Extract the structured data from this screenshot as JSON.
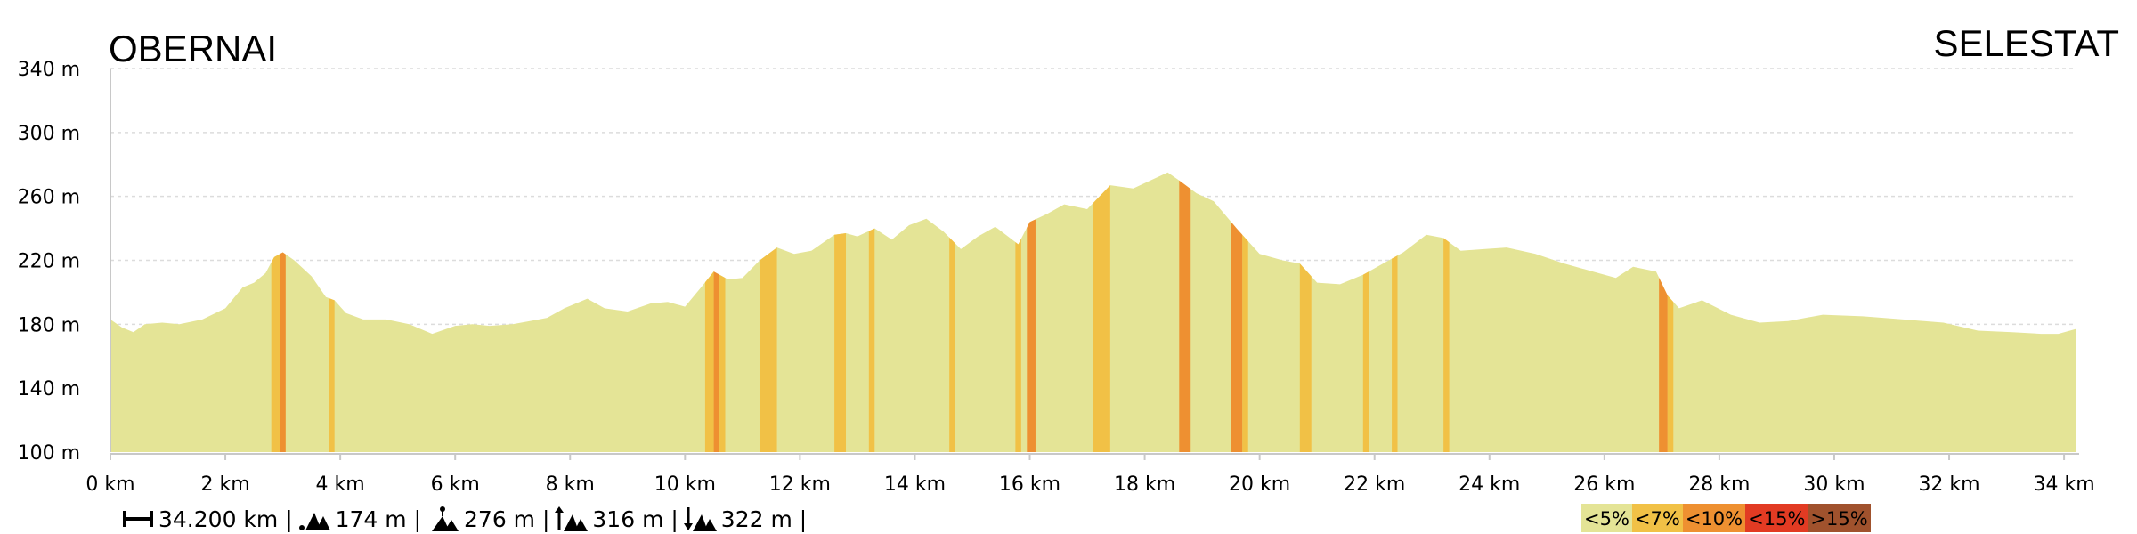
{
  "chart_data": {
    "type": "area",
    "title_left": "OBERNAI",
    "title_right": "SELESTAT",
    "xlabel": "",
    "ylabel": "",
    "x_unit": "km",
    "y_unit": "m",
    "xlim": [
      0,
      34.2
    ],
    "ylim": [
      100,
      340
    ],
    "x_ticks": [
      "0 km",
      "2 km",
      "4 km",
      "6 km",
      "8 km",
      "10 km",
      "12 km",
      "14 km",
      "16 km",
      "18 km",
      "20 km",
      "22 km",
      "24 km",
      "26 km",
      "28 km",
      "30 km",
      "32 km",
      "34 km"
    ],
    "y_ticks": [
      "100 m",
      "140 m",
      "180 m",
      "220 m",
      "260 m",
      "300 m",
      "340 m"
    ],
    "grid": "horizontal dotted",
    "profile": {
      "distance_km": [
        0,
        0.2,
        0.4,
        0.6,
        0.9,
        1.2,
        1.6,
        2.0,
        2.3,
        2.5,
        2.7,
        2.85,
        3.0,
        3.2,
        3.5,
        3.75,
        3.9,
        4.1,
        4.4,
        4.8,
        5.2,
        5.6,
        6.0,
        6.3,
        6.6,
        7.0,
        7.3,
        7.6,
        7.9,
        8.3,
        8.6,
        9.0,
        9.4,
        9.7,
        10.0,
        10.3,
        10.5,
        10.75,
        11.0,
        11.3,
        11.6,
        11.9,
        12.2,
        12.6,
        12.8,
        13.0,
        13.3,
        13.6,
        13.9,
        14.2,
        14.5,
        14.8,
        15.1,
        15.4,
        15.8,
        16.0,
        16.3,
        16.6,
        17.0,
        17.4,
        17.8,
        18.1,
        18.4,
        18.6,
        18.9,
        19.2,
        19.6,
        20.0,
        20.4,
        20.7,
        21.0,
        21.4,
        21.8,
        22.2,
        22.5,
        22.9,
        23.2,
        23.5,
        23.9,
        24.3,
        24.8,
        25.3,
        25.8,
        26.2,
        26.5,
        26.9,
        27.1,
        27.3,
        27.7,
        28.2,
        28.7,
        29.2,
        29.8,
        30.5,
        31.2,
        31.9,
        32.5,
        33.1,
        33.6,
        33.9,
        34.2
      ],
      "elevation_m": [
        183,
        178,
        175,
        180,
        181,
        180,
        183,
        190,
        203,
        206,
        212,
        222,
        225,
        220,
        210,
        197,
        195,
        187,
        183,
        183,
        180,
        174,
        179,
        180,
        179,
        180,
        182,
        184,
        190,
        196,
        190,
        188,
        193,
        194,
        191,
        204,
        213,
        208,
        209,
        220,
        228,
        224,
        226,
        236,
        237,
        235,
        240,
        233,
        242,
        246,
        238,
        227,
        235,
        241,
        230,
        244,
        249,
        255,
        252,
        267,
        265,
        270,
        275,
        270,
        262,
        257,
        240,
        224,
        220,
        218,
        206,
        205,
        211,
        219,
        225,
        236,
        234,
        226,
        227,
        228,
        224,
        218,
        213,
        209,
        216,
        213,
        198,
        190,
        195,
        186,
        181,
        182,
        186,
        185,
        183,
        181,
        176,
        175,
        174,
        174,
        177
      ]
    },
    "gradient_segments": [
      {
        "from_km": 2.8,
        "to_km": 2.95,
        "class": "<7%"
      },
      {
        "from_km": 2.95,
        "to_km": 3.05,
        "class": "<10%"
      },
      {
        "from_km": 3.8,
        "to_km": 3.9,
        "class": "<7%"
      },
      {
        "from_km": 10.35,
        "to_km": 10.5,
        "class": "<7%"
      },
      {
        "from_km": 10.5,
        "to_km": 10.6,
        "class": "<10%"
      },
      {
        "from_km": 10.6,
        "to_km": 10.7,
        "class": "<7%"
      },
      {
        "from_km": 11.3,
        "to_km": 11.6,
        "class": "<7%"
      },
      {
        "from_km": 12.6,
        "to_km": 12.8,
        "class": "<7%"
      },
      {
        "from_km": 13.2,
        "to_km": 13.3,
        "class": "<7%"
      },
      {
        "from_km": 14.6,
        "to_km": 14.7,
        "class": "<7%"
      },
      {
        "from_km": 15.75,
        "to_km": 15.85,
        "class": "<7%"
      },
      {
        "from_km": 15.95,
        "to_km": 16.1,
        "class": "<10%"
      },
      {
        "from_km": 17.1,
        "to_km": 17.4,
        "class": "<7%"
      },
      {
        "from_km": 18.6,
        "to_km": 18.8,
        "class": "<10%"
      },
      {
        "from_km": 19.5,
        "to_km": 19.7,
        "class": "<10%"
      },
      {
        "from_km": 19.7,
        "to_km": 19.8,
        "class": "<7%"
      },
      {
        "from_km": 20.7,
        "to_km": 20.9,
        "class": "<7%"
      },
      {
        "from_km": 21.8,
        "to_km": 21.9,
        "class": "<7%"
      },
      {
        "from_km": 22.3,
        "to_km": 22.4,
        "class": "<7%"
      },
      {
        "from_km": 23.2,
        "to_km": 23.3,
        "class": "<7%"
      },
      {
        "from_km": 26.95,
        "to_km": 27.1,
        "class": "<10%"
      },
      {
        "from_km": 27.1,
        "to_km": 27.2,
        "class": "<7%"
      }
    ],
    "legend": [
      {
        "label": "<5%",
        "color": "#e4e496"
      },
      {
        "label": "<7%",
        "color": "#f1c146"
      },
      {
        "label": "<10%",
        "color": "#ee9031"
      },
      {
        "label": "<15%",
        "color": "#e23b23"
      },
      {
        "label": ">15%",
        "color": "#a0522d"
      }
    ],
    "stats": {
      "distance": "34.200 km |",
      "min_altitude": "174 m |",
      "max_altitude": "276 m |",
      "ascent": "316 m |",
      "descent": "322 m |"
    }
  }
}
